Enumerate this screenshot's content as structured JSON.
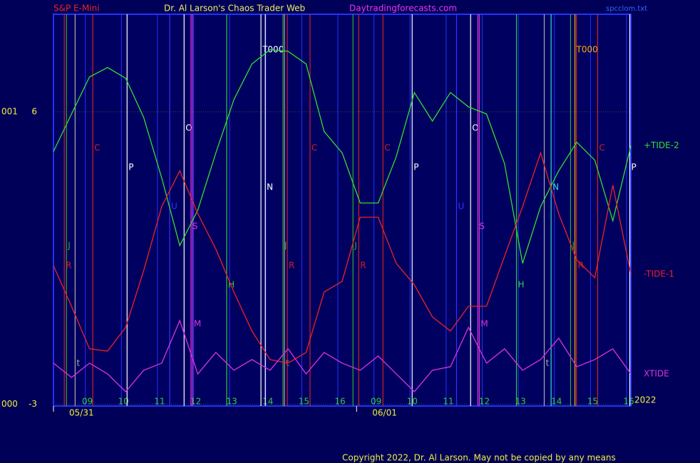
{
  "chart_data": {
    "type": "line",
    "title": "Dr. Al Larson's Chaos Trader Web",
    "symbol": "S&P E-Mini",
    "site": "Daytradingforecasts.com",
    "file": "spcclom.txt",
    "copyright": "Copyright 2022, Dr. Al Larson. May not be copied by any means",
    "year": "2022",
    "xlim": [
      0,
      16
    ],
    "ylim": [
      -3.06,
      9.0
    ],
    "yticks": [
      6,
      -3
    ],
    "left_labels": [
      "001",
      "000"
    ],
    "xticks": [
      {
        "value": 1,
        "label": "09"
      },
      {
        "value": 2,
        "label": "10"
      },
      {
        "value": 3,
        "label": "11"
      },
      {
        "value": 4,
        "label": "12"
      },
      {
        "value": 5,
        "label": "13"
      },
      {
        "value": 6,
        "label": "14"
      },
      {
        "value": 7,
        "label": "15"
      },
      {
        "value": 8,
        "label": "16"
      },
      {
        "value": 9,
        "label": "09"
      },
      {
        "value": 10,
        "label": "10"
      },
      {
        "value": 11,
        "label": "11"
      },
      {
        "value": 12,
        "label": "12"
      },
      {
        "value": 13,
        "label": "13"
      },
      {
        "value": 14,
        "label": "14"
      },
      {
        "value": 15,
        "label": "15"
      },
      {
        "value": 16,
        "label": "16"
      }
    ],
    "dates": [
      {
        "value": 0,
        "label": "05/31"
      },
      {
        "value": 8.4,
        "label": "06/01"
      }
    ],
    "x": [
      0,
      0.5,
      1,
      1.5,
      2,
      2.5,
      3,
      3.5,
      4,
      4.5,
      5,
      5.5,
      6,
      6.5,
      7,
      7.5,
      8,
      8.5,
      9,
      9.5,
      10,
      10.5,
      11,
      11.5,
      12,
      12.5,
      13,
      13.5,
      14,
      14.5,
      15,
      15.5,
      16
    ],
    "series": [
      {
        "name": "+TIDE-2",
        "color": "#33dd33",
        "values": [
          4.77,
          5.93,
          7.07,
          7.36,
          7.03,
          5.82,
          3.96,
          1.88,
          2.97,
          4.73,
          6.37,
          7.47,
          7.91,
          7.86,
          7.47,
          5.39,
          4.73,
          3.19,
          3.19,
          4.62,
          6.59,
          5.71,
          6.59,
          6.15,
          5.93,
          4.4,
          1.33,
          3.08,
          4.18,
          5.06,
          4.51,
          2.64,
          4.95
        ]
      },
      {
        "name": "-TIDE-1",
        "color": "#ee2222",
        "values": [
          1.26,
          0.01,
          -1.3,
          -1.37,
          -0.64,
          1.11,
          3.08,
          4.18,
          2.86,
          1.77,
          0.45,
          -0.75,
          -1.63,
          -1.74,
          -1.41,
          0.45,
          0.78,
          2.75,
          2.75,
          1.33,
          0.67,
          -0.32,
          -0.75,
          0.01,
          0.01,
          1.55,
          3.08,
          4.73,
          2.86,
          1.44,
          0.89,
          3.74,
          1.0
        ]
      },
      {
        "name": "XTIDE",
        "color": "#dd33dd",
        "values": [
          -1.74,
          -2.18,
          -1.74,
          -2.07,
          -2.62,
          -1.96,
          -1.74,
          -0.43,
          -2.07,
          -1.41,
          -1.96,
          -1.63,
          -1.96,
          -1.3,
          -2.07,
          -1.41,
          -1.74,
          -1.96,
          -1.52,
          -2.07,
          -2.62,
          -1.96,
          -1.85,
          -0.64,
          -1.74,
          -1.3,
          -1.96,
          -1.63,
          -0.97,
          -1.85,
          -1.63,
          -1.3,
          -2.07
        ]
      }
    ],
    "events": [
      {
        "label": "J",
        "x": 0.36,
        "color": "#33aa33"
      },
      {
        "label": "R",
        "x": 0.3,
        "color": "#cc2222"
      },
      {
        "label": "t",
        "x": 0.6,
        "color": "#aaaaaa"
      },
      {
        "label": "C",
        "x": 1.09,
        "color": "#cc2222"
      },
      {
        "label": "P",
        "x": 2.04,
        "color": "#ffffff"
      },
      {
        "label": "U",
        "x": 3.22,
        "color": "#3333ff"
      },
      {
        "label": "O",
        "x": 3.62,
        "color": "#ffffff"
      },
      {
        "label": "S",
        "x": 3.81,
        "color": "#dd33dd"
      },
      {
        "label": "M",
        "x": 3.85,
        "color": "#dd33dd"
      },
      {
        "label": "H",
        "x": 4.8,
        "color": "#33cc33"
      },
      {
        "label": "T000",
        "x": 5.75,
        "color": "#ffffff"
      },
      {
        "label": "N",
        "x": 5.87,
        "color": "#ffffff"
      },
      {
        "label": "t",
        "x": 6.4,
        "color": "#aaaaaa"
      },
      {
        "label": "J",
        "x": 6.36,
        "color": "#33aa33"
      },
      {
        "label": "R",
        "x": 6.48,
        "color": "#cc2222"
      },
      {
        "label": "C",
        "x": 7.11,
        "color": "#cc2222"
      },
      {
        "label": "J",
        "x": 8.3,
        "color": "#33aa33"
      },
      {
        "label": "R",
        "x": 8.46,
        "color": "#cc2222"
      },
      {
        "label": "C",
        "x": 9.13,
        "color": "#cc2222"
      },
      {
        "label": "P",
        "x": 9.94,
        "color": "#ffffff"
      },
      {
        "label": "U",
        "x": 11.17,
        "color": "#3333ff"
      },
      {
        "label": "O",
        "x": 11.56,
        "color": "#ffffff"
      },
      {
        "label": "S",
        "x": 11.76,
        "color": "#dd33dd"
      },
      {
        "label": "M",
        "x": 11.8,
        "color": "#dd33dd"
      },
      {
        "label": "H",
        "x": 12.83,
        "color": "#33cc33"
      },
      {
        "label": "t",
        "x": 13.6,
        "color": "#aaaaaa"
      },
      {
        "label": "N",
        "x": 13.79,
        "color": "#33dddd"
      },
      {
        "label": "J",
        "x": 14.33,
        "color": "#33aa33"
      },
      {
        "label": "R",
        "x": 14.49,
        "color": "#cc2222"
      },
      {
        "label": "T000",
        "x": 14.45,
        "color": "#ffaa00"
      },
      {
        "label": "C",
        "x": 15.08,
        "color": "#cc2222"
      },
      {
        "label": "P",
        "x": 15.97,
        "color": "#ffffff"
      }
    ]
  }
}
